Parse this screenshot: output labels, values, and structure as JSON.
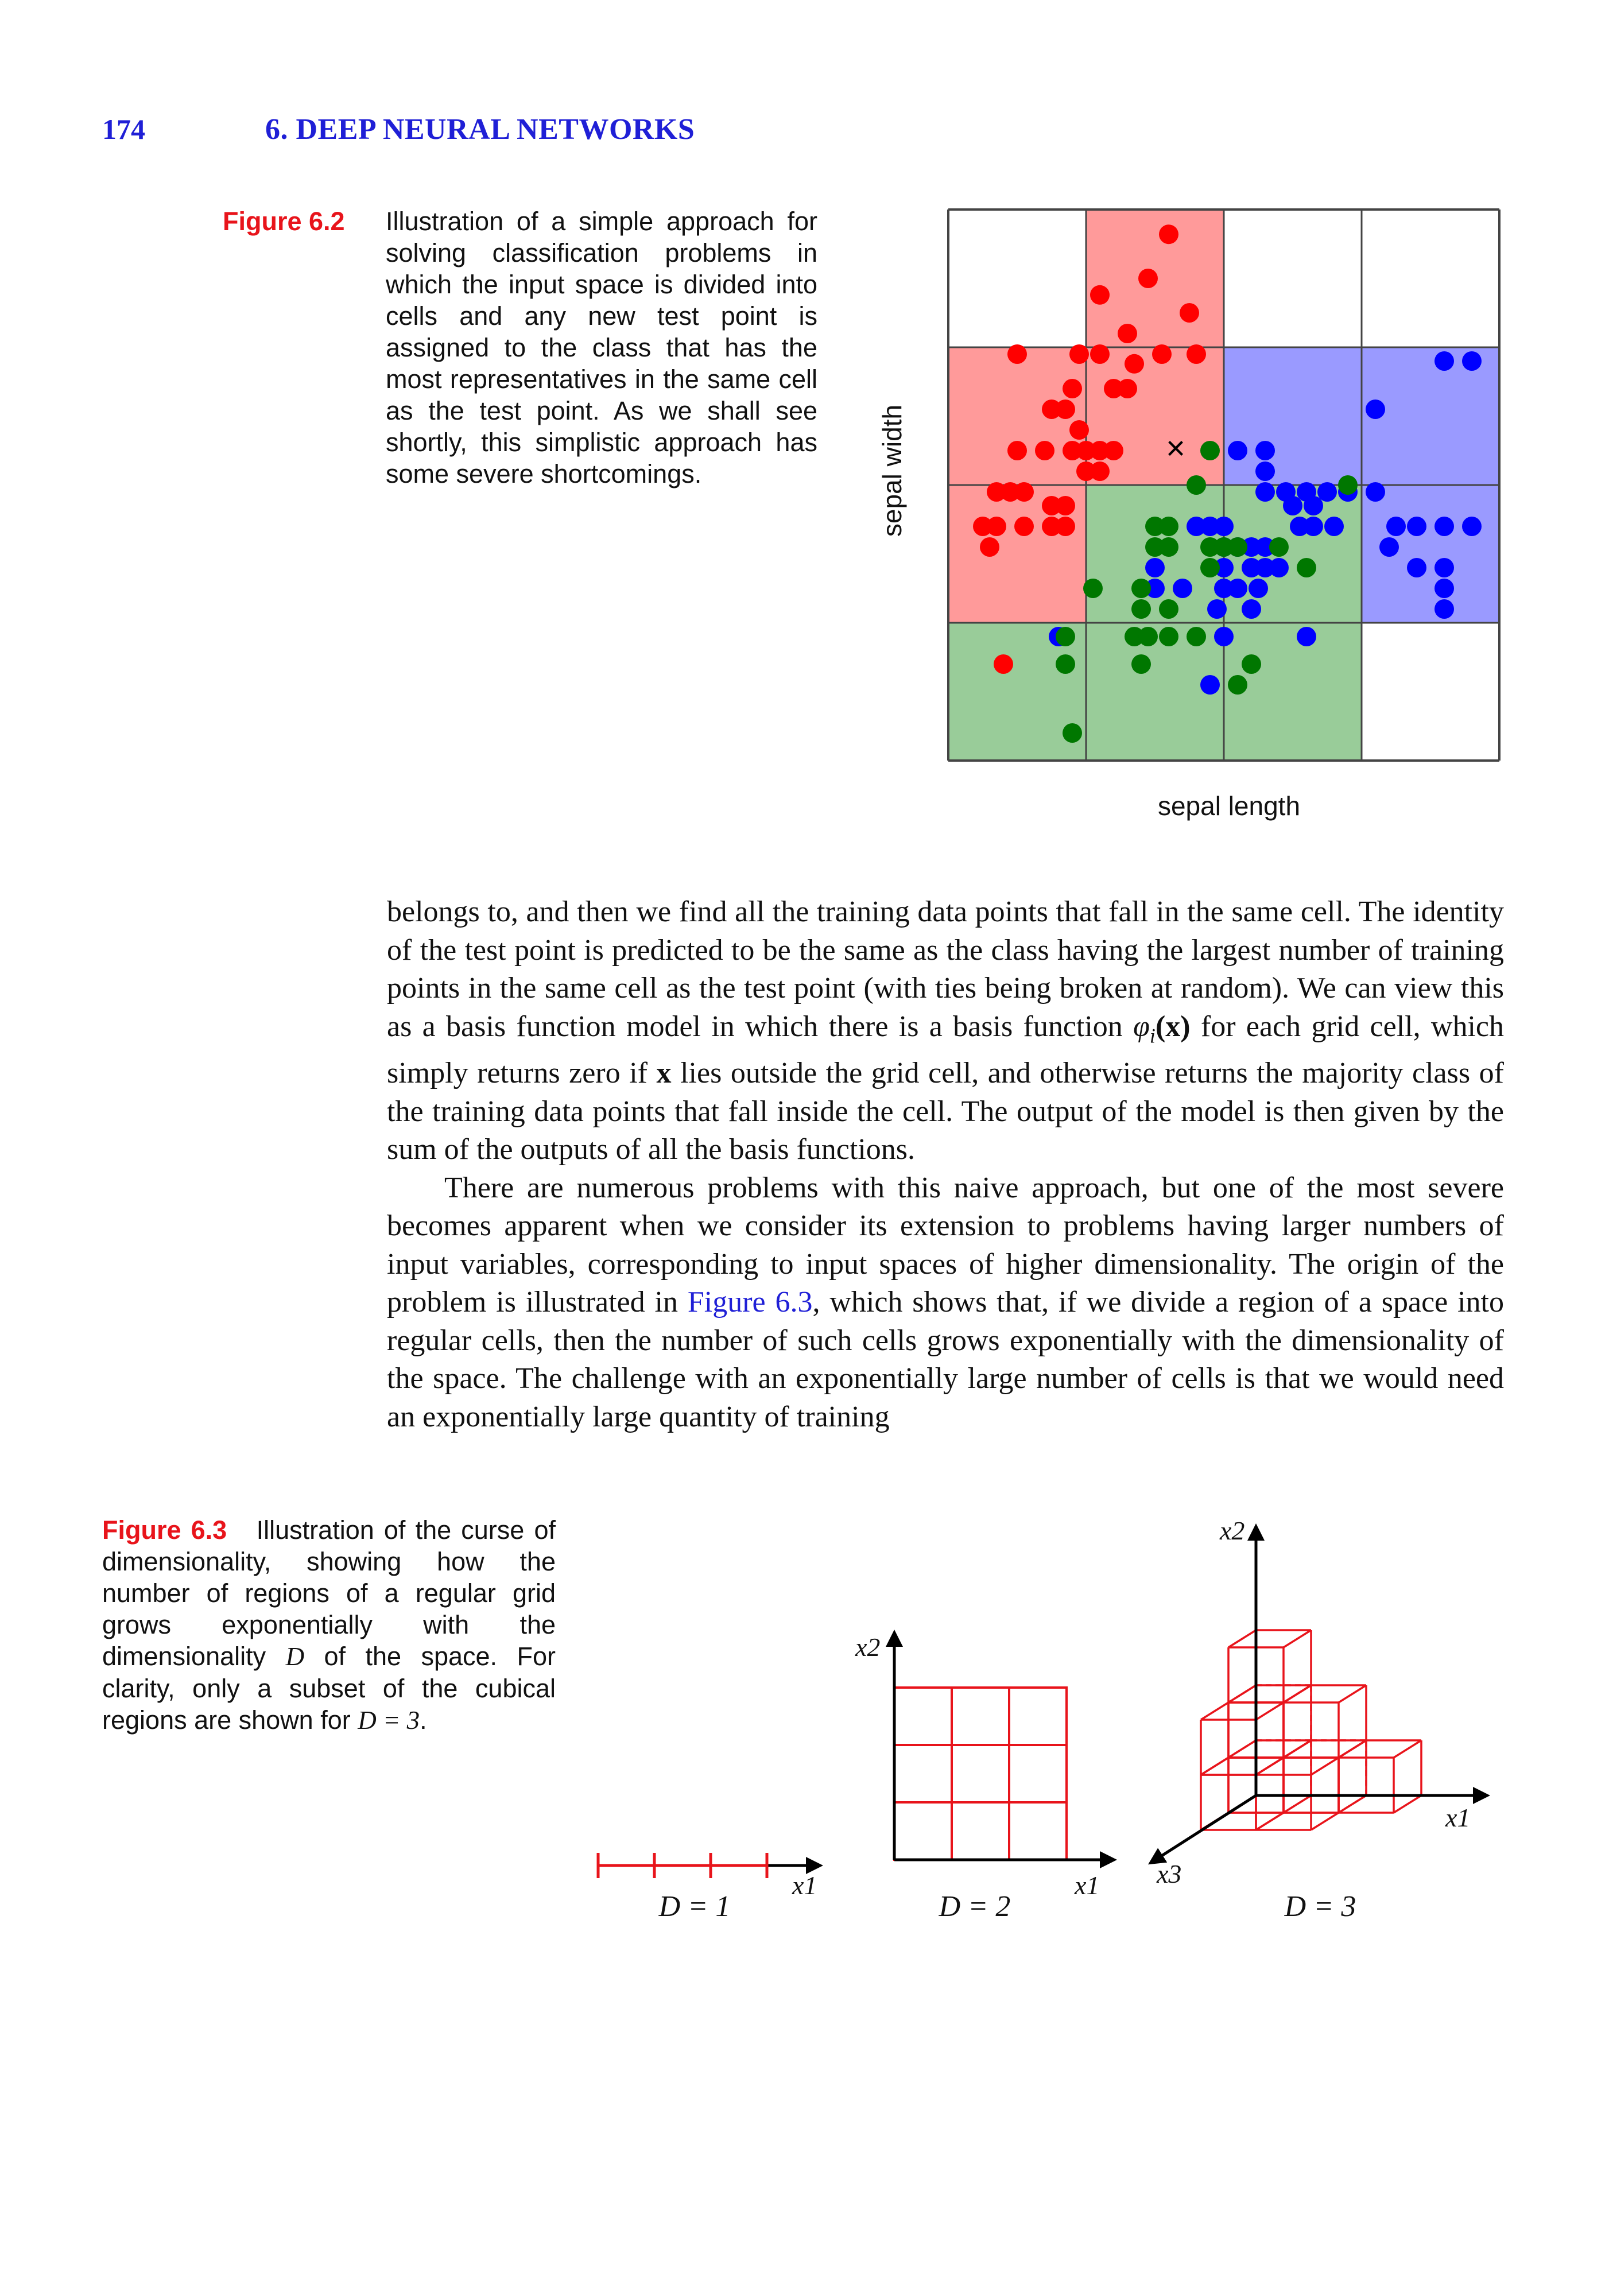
{
  "header": {
    "page_number": "174",
    "chapter_title": "6. DEEP NEURAL NETWORKS"
  },
  "figure_6_2": {
    "label": "Figure 6.2",
    "caption": "Illustration of a simple approach for solving classification problems in which the input space is divided into cells and any new test point is assigned to the class that has the most representatives in the same cell as the test point. As we shall see shortly, this simplistic approach has some severe shortcomings.",
    "xlabel": "sepal length",
    "ylabel": "sepal width",
    "test_point_marker": "×"
  },
  "figure_6_3": {
    "label": "Figure 6.3",
    "caption_part1": "Illustration of the curse of dimensionality, showing how the number of regions of a regular grid grows exponentially with the dimensionality ",
    "caption_var": "D",
    "caption_part2": " of the space. For clarity, only a subset of the cubical regions are shown for ",
    "caption_eq": "D = 3",
    "caption_end": ".",
    "axis_x1": "x1",
    "axis_x2": "x2",
    "axis_x3": "x3",
    "label_d1": "D = 1",
    "label_d2": "D = 2",
    "label_d3": "D = 3"
  },
  "body": {
    "p1_part1": "belongs to, and then we find all the training data points that fall in the same cell. The identity of the test point is predicted to be the same as the class having the largest number of training points in the same cell as the test point (with ties being broken at random). We can view this as a basis function model in which there is a basis function ",
    "p1_math1": "φ",
    "p1_math1_sub": "i",
    "p1_math1_arg": "(x)",
    "p1_part2": " for each grid cell, which simply returns zero if ",
    "p1_math2": "x",
    "p1_part3": " lies outside the grid cell, and otherwise returns the majority class of the training data points that fall inside the cell. The output of the model is then given by the sum of the outputs of all the basis functions.",
    "p2_part1": "There are numerous problems with this naive approach, but one of the most severe becomes apparent when we consider its extension to problems having larger numbers of input variables, corresponding to input spaces of higher dimensionality. The origin of the problem is illustrated in ",
    "p2_ref": "Figure 6.3",
    "p2_part2": ", which shows that, if we divide a region of a space into regular cells, then the number of such cells grows exponentially with the dimensionality of the space. The challenge with an exponentially large number of cells is that we would need an exponentially large quantity of training"
  },
  "chart_data": {
    "type": "scatter",
    "xlabel": "sepal length",
    "ylabel": "sepal width",
    "grid": "4x4 cells",
    "cell_colors": {
      "red": "#ff9a9a",
      "blue": "#9a9aff",
      "green": "#99cc99",
      "white": "#ffffff"
    },
    "cells": [
      [
        "white",
        "red",
        "white",
        "white"
      ],
      [
        "red",
        "red",
        "blue",
        "blue"
      ],
      [
        "red",
        "green",
        "green",
        "blue"
      ],
      [
        "green",
        "green",
        "green",
        "white"
      ]
    ],
    "series": [
      {
        "name": "",
        "color": "#ff0000",
        "points": [
          [
            1.6,
            0.18
          ],
          [
            1.45,
            0.5
          ],
          [
            1.1,
            0.62
          ],
          [
            1.75,
            0.75
          ],
          [
            1.3,
            0.9
          ],
          [
            1.55,
            1.05
          ],
          [
            0.95,
            1.05
          ],
          [
            1.1,
            1.05
          ],
          [
            1.35,
            1.12
          ],
          [
            1.8,
            1.05
          ],
          [
            0.5,
            1.05
          ],
          [
            0.75,
            1.45
          ],
          [
            0.85,
            1.45
          ],
          [
            0.9,
            1.3
          ],
          [
            1.2,
            1.3
          ],
          [
            1.3,
            1.3
          ],
          [
            0.5,
            1.75
          ],
          [
            0.7,
            1.75
          ],
          [
            0.9,
            1.75
          ],
          [
            0.95,
            1.6
          ],
          [
            1.0,
            1.75
          ],
          [
            1.1,
            1.75
          ],
          [
            1.2,
            1.75
          ],
          [
            1.0,
            1.9
          ],
          [
            1.1,
            1.9
          ],
          [
            0.35,
            2.05
          ],
          [
            0.45,
            2.05
          ],
          [
            0.55,
            2.05
          ],
          [
            0.75,
            2.15
          ],
          [
            0.85,
            2.15
          ],
          [
            0.85,
            2.3
          ],
          [
            0.75,
            2.3
          ],
          [
            0.25,
            2.3
          ],
          [
            0.35,
            2.3
          ],
          [
            0.3,
            2.45
          ],
          [
            0.55,
            2.3
          ],
          [
            0.4,
            3.3
          ]
        ]
      },
      {
        "name": "",
        "color": "#0000ff",
        "points": [
          [
            3.6,
            1.1
          ],
          [
            3.8,
            1.1
          ],
          [
            3.1,
            1.45
          ],
          [
            2.1,
            1.75
          ],
          [
            2.3,
            1.75
          ],
          [
            2.3,
            1.9
          ],
          [
            2.3,
            2.05
          ],
          [
            2.45,
            2.05
          ],
          [
            2.6,
            2.05
          ],
          [
            2.75,
            2.05
          ],
          [
            2.9,
            2.05
          ],
          [
            3.1,
            2.05
          ],
          [
            2.5,
            2.15
          ],
          [
            2.65,
            2.15
          ],
          [
            2.55,
            2.3
          ],
          [
            2.8,
            2.3
          ],
          [
            2.65,
            2.3
          ],
          [
            3.25,
            2.3
          ],
          [
            3.4,
            2.3
          ],
          [
            3.6,
            2.3
          ],
          [
            3.8,
            2.3
          ],
          [
            1.8,
            2.3
          ],
          [
            1.9,
            2.3
          ],
          [
            2.0,
            2.3
          ],
          [
            3.2,
            2.45
          ],
          [
            2.1,
            2.45
          ],
          [
            2.2,
            2.45
          ],
          [
            2.3,
            2.45
          ],
          [
            1.5,
            2.6
          ],
          [
            2.0,
            2.45
          ],
          [
            2.0,
            2.6
          ],
          [
            2.2,
            2.6
          ],
          [
            2.3,
            2.6
          ],
          [
            2.4,
            2.6
          ],
          [
            3.4,
            2.6
          ],
          [
            3.6,
            2.6
          ],
          [
            2.0,
            2.75
          ],
          [
            2.1,
            2.75
          ],
          [
            2.25,
            2.75
          ],
          [
            1.5,
            2.75
          ],
          [
            1.7,
            2.75
          ],
          [
            1.95,
            2.9
          ],
          [
            2.2,
            2.9
          ],
          [
            3.6,
            2.75
          ],
          [
            3.6,
            2.9
          ],
          [
            0.8,
            3.1
          ],
          [
            2.0,
            3.1
          ],
          [
            2.6,
            3.1
          ],
          [
            1.9,
            3.45
          ]
        ]
      },
      {
        "name": "",
        "color": "#007700",
        "points": [
          [
            1.9,
            1.75
          ],
          [
            1.8,
            2.0
          ],
          [
            2.9,
            2.0
          ],
          [
            1.5,
            2.3
          ],
          [
            1.6,
            2.3
          ],
          [
            1.5,
            2.45
          ],
          [
            1.6,
            2.45
          ],
          [
            1.9,
            2.45
          ],
          [
            2.0,
            2.45
          ],
          [
            2.1,
            2.45
          ],
          [
            1.9,
            2.6
          ],
          [
            2.4,
            2.45
          ],
          [
            1.05,
            2.75
          ],
          [
            1.4,
            2.75
          ],
          [
            1.6,
            2.9
          ],
          [
            1.6,
            3.1
          ],
          [
            1.35,
            3.1
          ],
          [
            1.45,
            3.1
          ],
          [
            1.4,
            2.9
          ],
          [
            0.85,
            3.1
          ],
          [
            0.85,
            3.3
          ],
          [
            1.4,
            3.3
          ],
          [
            2.2,
            3.3
          ],
          [
            2.1,
            3.45
          ],
          [
            0.9,
            3.8
          ],
          [
            2.6,
            2.6
          ],
          [
            1.8,
            3.1
          ]
        ]
      }
    ],
    "test_point": [
      1.65,
      1.75
    ]
  }
}
